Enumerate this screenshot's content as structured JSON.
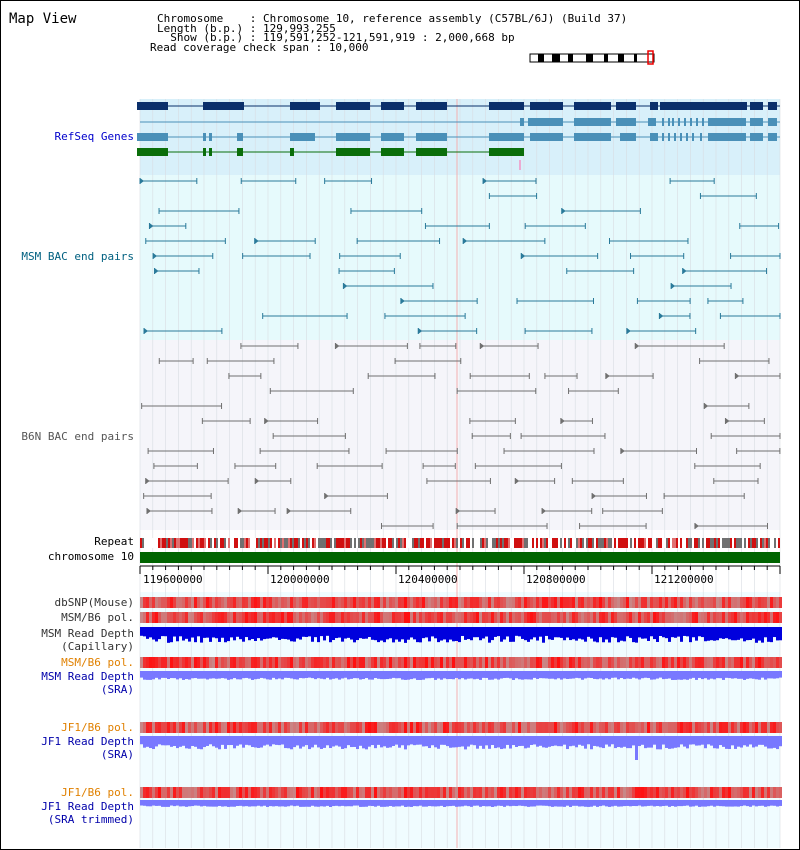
{
  "title": "Map View",
  "header": {
    "chromosome_label": "Chromosome    : ",
    "chromosome_value": "Chromosome 10, reference assembly (C57BL/6J) (Build 37)",
    "length_label": "Length (b.p.) : ",
    "length_value": "129,993,255",
    "show_label": "  Show (b.p.) : ",
    "show_value": "119,591,252-121,591,919 : 2,000,668 bp",
    "coverage_label": "Read coverage check span : ",
    "coverage_value": "10,000"
  },
  "tracks": {
    "refseq": "RefSeq Genes",
    "msm_bac": "MSM BAC end pairs",
    "b6n_bac": "B6N BAC end pairs",
    "repeat": "Repeat",
    "chromosome": "chromosome 10",
    "dbsnp": "dbSNP(Mouse)",
    "msm_b6_pol_1": "MSM/B6 pol.",
    "msm_read_depth_cap_1": "MSM Read Depth",
    "msm_read_depth_cap_2": "(Capillary)",
    "msm_b6_pol_2": "MSM/B6 pol.",
    "msm_read_depth_sra_1": "MSM Read Depth",
    "msm_read_depth_sra_2": "(SRA)",
    "jf1_b6_pol_1": "JF1/B6 pol.",
    "jf1_read_depth_sra_1": "JF1 Read Depth",
    "jf1_read_depth_sra_2": "(SRA)",
    "jf1_b6_pol_2": "JF1/B6 pol.",
    "jf1_read_depth_trim_1": "JF1 Read Depth",
    "jf1_read_depth_trim_2": "(SRA trimmed)"
  },
  "axis": {
    "tick_labels": [
      "119600000",
      "120000000",
      "120400000",
      "120800000",
      "121200000"
    ]
  },
  "colors": {
    "refseq_label": "#0000cc",
    "msm_label": "#006080",
    "b6n_label": "#555555",
    "orange_label": "#e08000",
    "blue_label": "#0000aa",
    "refseq_bg": "#d8f0fa",
    "msm_bg": "#e6fafc",
    "b6n_bg": "#f5f5fa",
    "gene_dark": "#0a2f6b",
    "gene_mid": "#4a90b8",
    "gene_green": "#0a6e0a",
    "bac_msm": "#2a7a9a",
    "bac_b6n": "#707070",
    "depth_dark_blue": "#0000dd",
    "depth_light_blue": "#7878ff"
  }
}
